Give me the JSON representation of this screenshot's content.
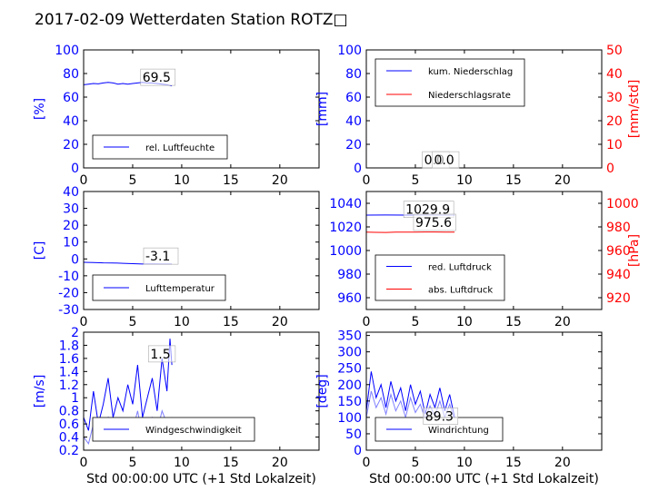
{
  "title": "2017-02-09 Wetterdaten Station ROTZ□",
  "colors": {
    "blue": "#0000ff",
    "red": "#ff0000",
    "light_blue": "#8080ff",
    "black": "#000000"
  },
  "chart_data": [
    {
      "type": "line",
      "panel": "humidity",
      "xlim": [
        0,
        24
      ],
      "ylim": [
        0,
        100
      ],
      "xticks": [
        0,
        5,
        10,
        15,
        20
      ],
      "yticks": [
        0,
        20,
        40,
        60,
        80,
        100
      ],
      "ylabel": "[%]",
      "xlabel": "",
      "annotations": [
        {
          "text": "69.5",
          "x": 6.0,
          "y": 73
        }
      ],
      "legend_position": "lower-left",
      "series": [
        {
          "name": "rel. Luftfeuchte",
          "color": "#0000ff",
          "x": [
            0,
            0.5,
            1,
            1.5,
            2,
            2.5,
            3,
            3.5,
            4,
            4.5,
            5,
            5.5,
            6,
            6.5,
            7,
            7.5,
            8,
            8.5,
            9
          ],
          "y": [
            70.5,
            71,
            71.5,
            71.2,
            72,
            72.5,
            72,
            71,
            71.5,
            71,
            71.5,
            72,
            72.5,
            72,
            72,
            71.5,
            71,
            70.5,
            69.5
          ]
        }
      ]
    },
    {
      "type": "line",
      "panel": "precipitation",
      "xlim": [
        0,
        24
      ],
      "ylim": [
        0,
        100
      ],
      "y2lim": [
        0,
        50
      ],
      "xticks": [
        0,
        5,
        10,
        15,
        20
      ],
      "yticks": [
        0,
        20,
        40,
        60,
        80,
        100
      ],
      "y2ticks": [
        0,
        10,
        20,
        30,
        40,
        50
      ],
      "ylabel": "[mm]",
      "y2label": "[mm/std]",
      "xlabel": "",
      "annotations": [
        {
          "text": "0.0",
          "x": 5.9,
          "y": 3
        },
        {
          "text": "0.0",
          "x": 6.9,
          "y": 3
        }
      ],
      "legend_position": "upper-left",
      "series": [
        {
          "name": "kum. Niederschlag",
          "color": "#0000ff",
          "axis": "left",
          "x": [
            0,
            9
          ],
          "y": [
            0,
            0
          ]
        },
        {
          "name": "Niederschlagsrate",
          "color": "#ff0000",
          "axis": "right",
          "x": [
            0,
            9
          ],
          "y": [
            0,
            0
          ]
        }
      ]
    },
    {
      "type": "line",
      "panel": "temperature",
      "xlim": [
        0,
        24
      ],
      "ylim": [
        -30,
        40
      ],
      "xticks": [
        0,
        5,
        10,
        15,
        20
      ],
      "yticks": [
        -30,
        -20,
        -10,
        0,
        10,
        20,
        30,
        40
      ],
      "ylabel": "[C]",
      "xlabel": "",
      "annotations": [
        {
          "text": "-3.1",
          "x": 6.3,
          "y": -1
        }
      ],
      "legend_position": "lower-left",
      "series": [
        {
          "name": "Lufttemperatur",
          "color": "#0000ff",
          "x": [
            0,
            1,
            2,
            3,
            4,
            5,
            6,
            7,
            8,
            9
          ],
          "y": [
            -2.0,
            -2.1,
            -2.3,
            -2.4,
            -2.6,
            -2.8,
            -3.0,
            -3.0,
            -3.1,
            -3.1
          ]
        }
      ]
    },
    {
      "type": "line",
      "panel": "pressure",
      "xlim": [
        0,
        24
      ],
      "ylim": [
        950,
        1050
      ],
      "y2lim": [
        910,
        1010
      ],
      "xticks": [
        0,
        5,
        10,
        15,
        20
      ],
      "yticks": [
        960,
        980,
        1000,
        1020,
        1040
      ],
      "y2ticks": [
        920,
        940,
        960,
        980,
        1000
      ],
      "ylabel": "",
      "y2label": "[hPa]",
      "xlabel": "",
      "annotations": [
        {
          "text": "1029.9",
          "x": 4.0,
          "y": 1031
        },
        {
          "text": "975.6",
          "x": 5.0,
          "y": 1020
        }
      ],
      "legend_position": "lower-left",
      "series": [
        {
          "name": "red. Luftdruck",
          "color": "#0000ff",
          "axis": "left",
          "x": [
            0,
            2,
            4,
            6,
            8,
            9
          ],
          "y": [
            1030.0,
            1030.1,
            1030.0,
            1030.0,
            1029.9,
            1029.9
          ]
        },
        {
          "name": "abs. Luftdruck",
          "color": "#ff0000",
          "axis": "right",
          "x": [
            0,
            1,
            2,
            3,
            4,
            5,
            6,
            7,
            8,
            9
          ],
          "y": [
            975.5,
            975.4,
            975.3,
            975.5,
            975.6,
            975.6,
            975.7,
            975.7,
            975.6,
            975.6
          ]
        }
      ]
    },
    {
      "type": "line",
      "panel": "wind-speed",
      "xlim": [
        0,
        24
      ],
      "ylim": [
        0.2,
        2.0
      ],
      "xticks": [
        0,
        5,
        10,
        15,
        20
      ],
      "yticks": [
        0.2,
        0.4,
        0.6,
        0.8,
        1.0,
        1.2,
        1.4,
        1.6,
        1.8,
        2.0
      ],
      "ylabel": "[m/s]",
      "xlabel": "Std 00:00:00 UTC (+1 Std Lokalzeit)",
      "annotations": [
        {
          "text": "1.5",
          "x": 6.8,
          "y": 1.6
        }
      ],
      "legend_position": "lower-left",
      "series": [
        {
          "name": "Windgeschwindigkeit",
          "color": "#0000ff",
          "x": [
            0,
            0.5,
            1,
            1.5,
            2,
            2.5,
            3,
            3.5,
            4,
            4.5,
            5,
            5.5,
            6,
            6.5,
            7,
            7.5,
            8,
            8.5,
            8.8,
            9
          ],
          "y": [
            0.7,
            0.5,
            1.1,
            0.6,
            0.9,
            1.3,
            0.7,
            1.0,
            0.8,
            1.2,
            0.9,
            1.5,
            0.7,
            1.0,
            1.3,
            0.8,
            1.6,
            1.1,
            1.9,
            1.5
          ]
        },
        {
          "name": "",
          "color": "#8080ff",
          "x": [
            0,
            0.5,
            1,
            1.5,
            2,
            2.5,
            3,
            3.5,
            4,
            4.5,
            5,
            5.5,
            6,
            6.5,
            7,
            7.5,
            8,
            8.5,
            9
          ],
          "y": [
            0.4,
            0.3,
            0.6,
            0.4,
            0.5,
            0.7,
            0.4,
            0.6,
            0.5,
            0.6,
            0.5,
            0.8,
            0.4,
            0.6,
            0.7,
            0.5,
            0.8,
            0.6,
            0.7
          ]
        }
      ]
    },
    {
      "type": "line",
      "panel": "wind-direction",
      "xlim": [
        0,
        24
      ],
      "ylim": [
        0,
        360
      ],
      "xticks": [
        0,
        5,
        10,
        15,
        20
      ],
      "yticks": [
        0,
        50,
        100,
        150,
        200,
        250,
        300,
        350
      ],
      "ylabel": "[deg]",
      "xlabel": "Std 00:00:00 UTC (+1 Std Lokalzeit)",
      "annotations": [
        {
          "text": "89.3",
          "x": 6.0,
          "y": 90
        }
      ],
      "legend_position": "lower-left",
      "series": [
        {
          "name": "Windrichtung",
          "color": "#0000ff",
          "x": [
            0,
            0.5,
            1,
            1.5,
            2,
            2.5,
            3,
            3.5,
            4,
            4.5,
            5,
            5.5,
            6,
            6.5,
            7,
            7.5,
            8,
            8.5,
            9
          ],
          "y": [
            120,
            240,
            160,
            200,
            130,
            210,
            150,
            190,
            120,
            200,
            140,
            180,
            110,
            170,
            130,
            190,
            120,
            170,
            100
          ]
        },
        {
          "name": "",
          "color": "#8080ff",
          "x": [
            0,
            0.5,
            1,
            1.5,
            2,
            2.5,
            3,
            3.5,
            4,
            4.5,
            5,
            5.5,
            6,
            6.5,
            7,
            7.5,
            8,
            8.5,
            9
          ],
          "y": [
            100,
            180,
            130,
            160,
            110,
            170,
            120,
            150,
            100,
            160,
            115,
            140,
            95,
            135,
            105,
            150,
            100,
            140,
            90
          ]
        }
      ]
    }
  ]
}
